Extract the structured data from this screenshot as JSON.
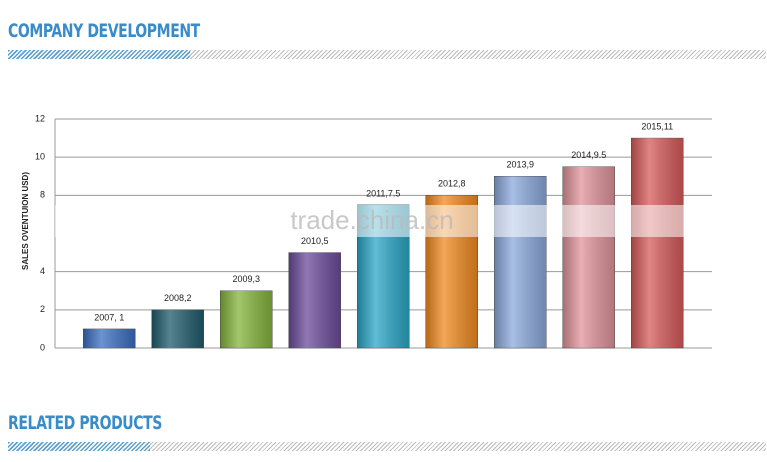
{
  "header": {
    "title": "COMPANY DEVELOPMENT"
  },
  "footer": {
    "title": "RELATED PRODUCTS"
  },
  "watermark": "trade.china.cn",
  "chart_data": {
    "type": "bar",
    "y_label_parts": [
      "SALES OVENTU",
      "ION USD)"
    ],
    "values": [
      1,
      2,
      3,
      5,
      7.5,
      8,
      9,
      9.5,
      11
    ],
    "value_labels": [
      "2007, 1",
      "2008,2",
      "2009,3",
      "2010,5",
      "2011,7.5",
      "2012,8",
      "2013,9",
      "2014,9.5",
      "2015,11"
    ],
    "colors": [
      "#3b6fc2",
      "#1f5b6c",
      "#85b43c",
      "#6b4b9b",
      "#2ba6c6",
      "#f08a1f",
      "#8ba9dc",
      "#e0939a",
      "#d65a5a"
    ],
    "ylim": [
      0,
      12
    ],
    "yticks": [
      0,
      2,
      4,
      8,
      10,
      12
    ],
    "grid": true
  }
}
